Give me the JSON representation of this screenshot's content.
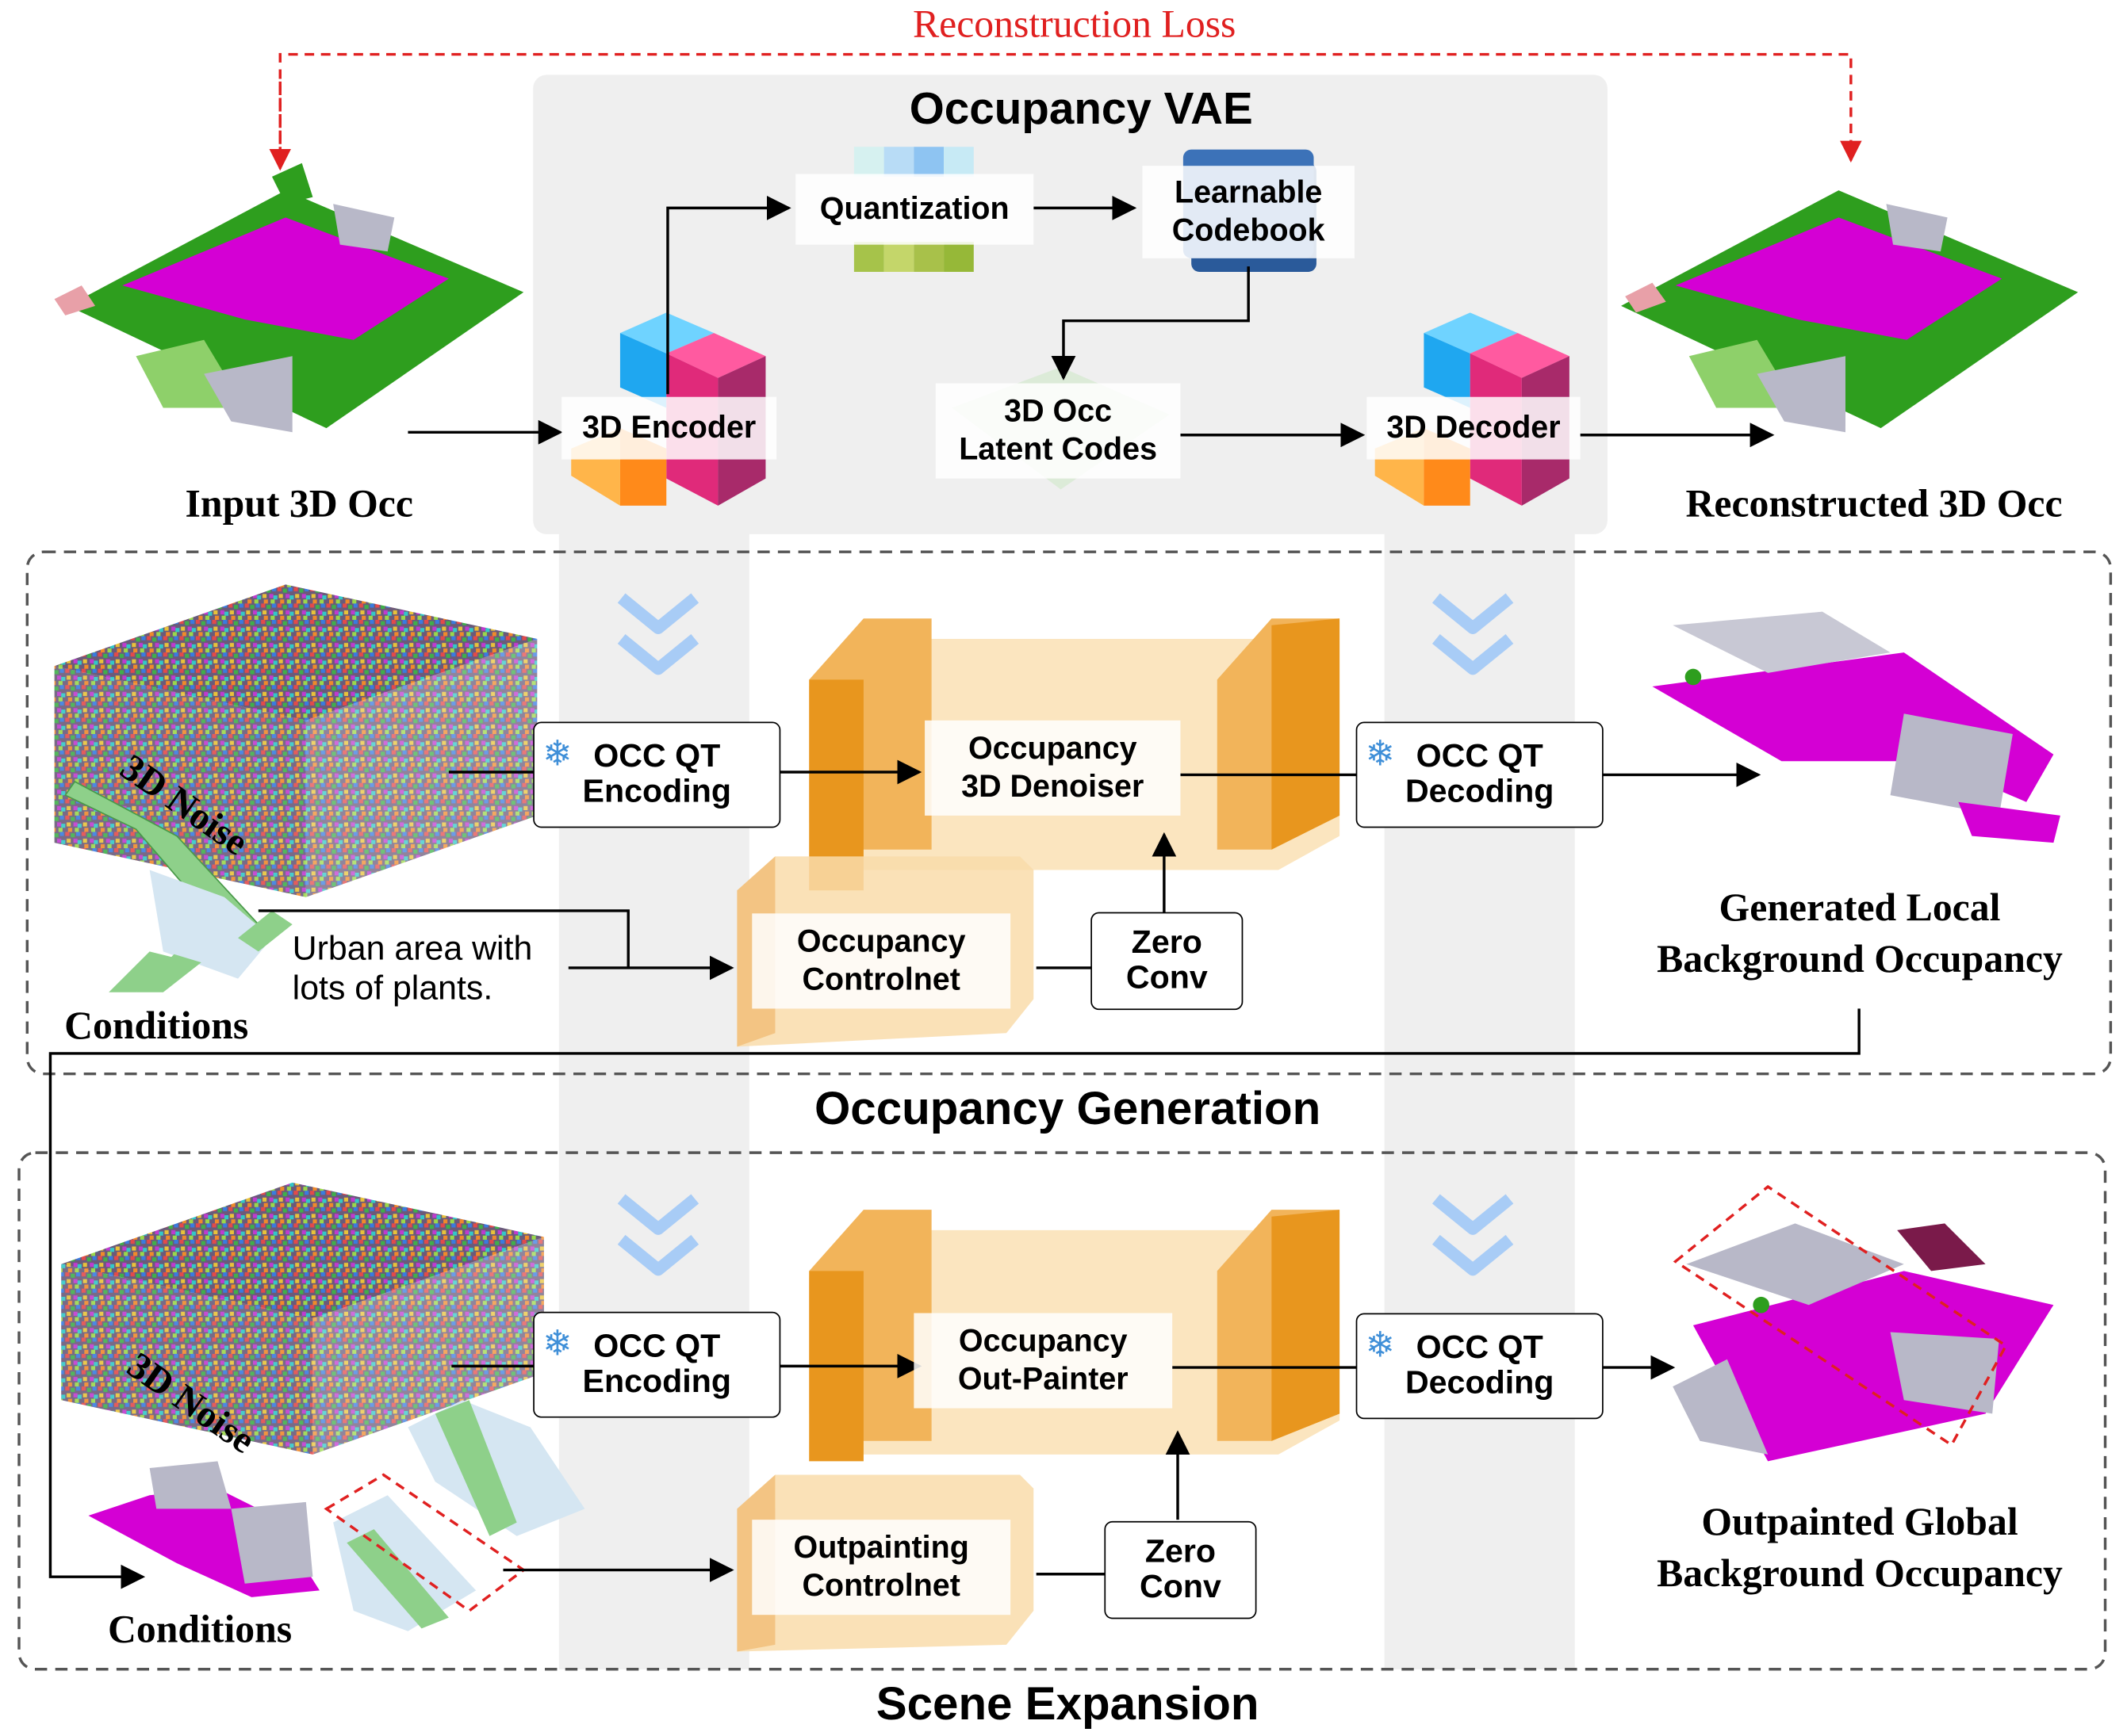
{
  "title_loss": "Reconstruction Loss",
  "vae": {
    "title": "Occupancy VAE",
    "quantization": "Quantization",
    "codebook": [
      "Learnable",
      "Codebook"
    ],
    "encoder": "3D Encoder",
    "decoder": "3D Decoder",
    "latent": [
      "3D Occ",
      "Latent Codes"
    ],
    "input_label": "Input 3D Occ",
    "output_label": "Reconstructed 3D Occ"
  },
  "generation": {
    "section_title": "Occupancy Generation",
    "noise_label": "3D Noise",
    "conditions_label": "Conditions",
    "text_prompt": [
      "Urban area with",
      "lots of  plants."
    ],
    "encoding": [
      "OCC QT",
      "Encoding"
    ],
    "denoiser": [
      "Occupancy",
      "3D Denoiser"
    ],
    "decoding": [
      "OCC QT",
      "Decoding"
    ],
    "controlnet": [
      "Occupancy",
      "Controlnet"
    ],
    "zero_conv": [
      "Zero",
      "Conv"
    ],
    "output_label": [
      "Generated Local",
      "Background Occupancy"
    ]
  },
  "expansion": {
    "section_title": "Scene Expansion",
    "noise_label": "3D Noise",
    "conditions_label": "Conditions",
    "encoding": [
      "OCC QT",
      "Encoding"
    ],
    "outpainter": [
      "Occupancy",
      "Out-Painter"
    ],
    "decoding": [
      "OCC QT",
      "Decoding"
    ],
    "controlnet": [
      "Outpainting",
      "Controlnet"
    ],
    "zero_conv": [
      "Zero",
      "Conv"
    ],
    "output_label": [
      "Outpainted Global",
      "Background Occupancy"
    ]
  },
  "colors": {
    "loss": "#e02020",
    "vae_panel": "#f0f0f0",
    "unet_dark": "#e8961e",
    "unet_light": "#f7cf8a",
    "road": "#d400d4",
    "vegetation": "#2e9e1e",
    "building": "#b8b8c8"
  },
  "icons": {
    "frozen": "snowflake-icon",
    "flow": "double-chevron-down-icon"
  }
}
